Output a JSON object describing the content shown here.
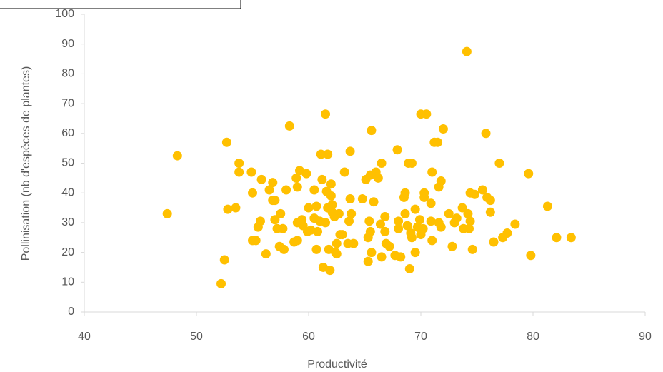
{
  "chart_data": {
    "type": "scatter",
    "x_label": "Productivité",
    "y_label": "Pollinisation (nb d'espèces de plantes)",
    "color": "#ffc000",
    "xlim": [
      40,
      90
    ],
    "xticks": [
      40,
      50,
      60,
      70,
      80,
      90
    ],
    "ylim": [
      0,
      100
    ],
    "yticks": [
      0,
      10,
      20,
      30,
      40,
      50,
      60,
      70,
      80,
      90,
      100
    ],
    "grid": false,
    "x": [
      47.4,
      48.3,
      52.2,
      52.5,
      52.7,
      52.8,
      53.5,
      53.8,
      53.8,
      54.9,
      55,
      55,
      55.3,
      55.5,
      55.7,
      55.8,
      56.2,
      56.5,
      56.8,
      56.8,
      57,
      57,
      57.2,
      57.4,
      57.5,
      57.7,
      57.8,
      58,
      58.3,
      58.7,
      58.9,
      59,
      59,
      59,
      59.2,
      59.4,
      59.5,
      59.8,
      59.9,
      60,
      60.2,
      60.5,
      60.5,
      60.7,
      60.7,
      60.8,
      61,
      61.1,
      61.2,
      61.3,
      61.5,
      61.5,
      61.6,
      61.7,
      61.7,
      61.8,
      61.9,
      62,
      62,
      62.1,
      62.1,
      62.3,
      62.4,
      62.5,
      62.5,
      62.7,
      62.8,
      63,
      63.2,
      63.5,
      63.6,
      63.7,
      63.7,
      63.8,
      64,
      64.8,
      65.1,
      65.3,
      65.3,
      65.4,
      65.5,
      65.5,
      65.6,
      65.6,
      65.8,
      66,
      66.2,
      66.4,
      66.5,
      66.5,
      66.8,
      66.8,
      66.9,
      67.2,
      67.7,
      67.9,
      68,
      68,
      68.2,
      68.5,
      68.6,
      68.6,
      68.8,
      68.9,
      69,
      69.1,
      69.2,
      69.2,
      69.5,
      69.5,
      69.7,
      69.9,
      70,
      70,
      70.2,
      70.3,
      70.3,
      70.5,
      70.9,
      70.9,
      71,
      71,
      71.2,
      71.5,
      71.6,
      71.6,
      71.8,
      71.8,
      72,
      72.5,
      72.8,
      73,
      73.2,
      73.7,
      73.8,
      74.1,
      74.2,
      74.3,
      74.4,
      74.4,
      74.6,
      74.8,
      75.5,
      75.8,
      75.9,
      76.2,
      76.2,
      76.5,
      77,
      77.3,
      77.7,
      78.4,
      79.6,
      79.8,
      81.3,
      82.1,
      83.4
    ],
    "y": [
      33,
      52.5,
      9.5,
      17.5,
      57,
      34.5,
      35,
      50,
      47,
      47,
      40,
      24,
      24,
      28.5,
      30.5,
      44.5,
      19.5,
      41,
      43.5,
      37.5,
      37.5,
      31,
      28,
      22,
      33,
      28,
      21,
      41,
      62.5,
      23.5,
      45,
      42,
      24,
      30,
      47.5,
      31,
      29,
      46.5,
      27,
      35,
      27.5,
      41,
      31.5,
      35.5,
      21,
      27,
      30.5,
      53,
      44.5,
      15,
      30,
      66.5,
      40.5,
      35,
      53,
      21,
      14,
      43,
      39,
      36,
      33.5,
      32,
      20,
      19.5,
      23,
      33,
      26,
      26,
      47,
      23,
      30.5,
      38,
      54,
      33,
      23,
      38,
      44.5,
      17,
      25,
      30.5,
      27,
      46,
      61,
      20,
      37,
      47,
      45,
      29.5,
      50,
      18.5,
      27,
      32,
      23,
      22,
      19,
      54.5,
      30.5,
      28,
      18.5,
      38.5,
      40,
      33,
      29,
      50,
      14.5,
      26.5,
      25,
      50,
      34.5,
      20,
      28.5,
      31,
      26,
      66.5,
      28,
      40,
      38.5,
      66.5,
      30.5,
      36.5,
      47,
      24,
      57,
      57,
      42,
      30,
      44,
      28.5,
      61.5,
      33,
      22,
      30,
      31.5,
      35,
      28,
      87.5,
      33,
      28,
      40,
      30.5,
      21,
      39.5,
      41,
      60,
      38.5,
      37.5,
      33.5,
      23.5,
      50,
      25,
      26.5,
      29.5,
      46.5,
      19,
      35.5,
      25,
      25
    ]
  }
}
